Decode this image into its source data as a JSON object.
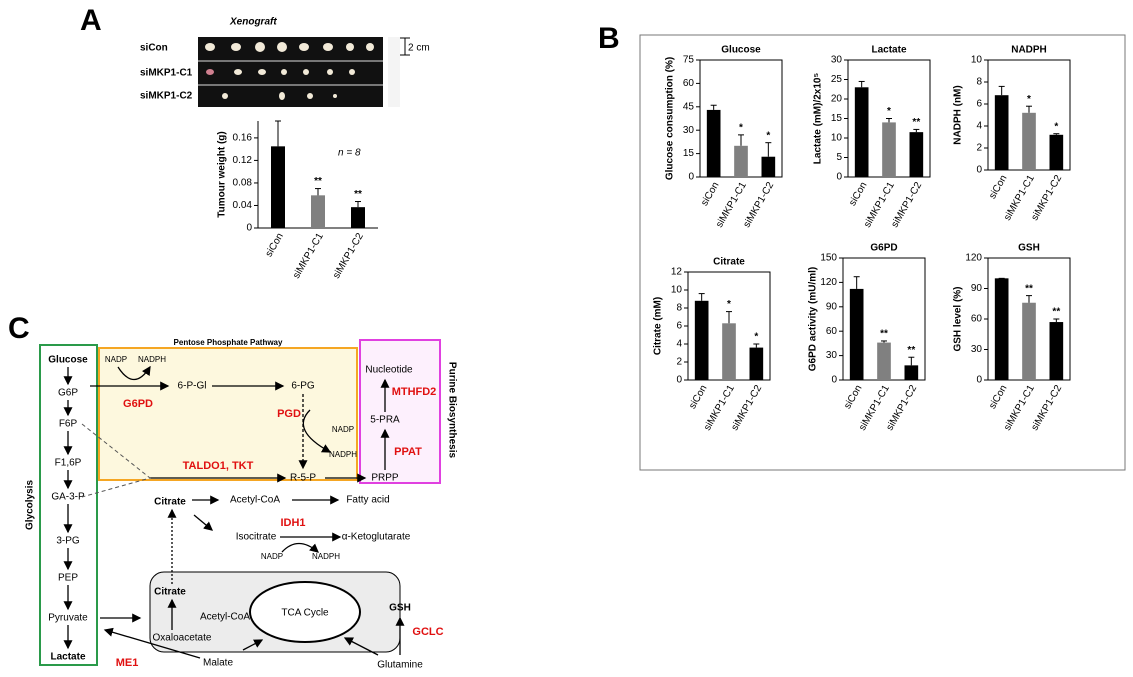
{
  "panels": [
    "A",
    "B",
    "C"
  ],
  "xenograft": {
    "title": "Xenograft",
    "rows": [
      "siCon",
      "siMKP1-C1",
      "siMKP1-C2"
    ],
    "scale": "2 cm"
  },
  "chart_data": [
    {
      "type": "bar",
      "ylabel": "Tumour weight (g)",
      "note": "n = 8",
      "categories": [
        "siCon",
        "siMKP1-C1",
        "siMKP1-C2"
      ],
      "values": [
        0.145,
        0.058,
        0.037
      ],
      "errors": [
        0.045,
        0.012,
        0.01
      ],
      "colors": [
        "#000000",
        "#808080",
        "#000000"
      ],
      "annotations": [
        "**",
        "**"
      ],
      "ylim": [
        0,
        0.19
      ],
      "yticks": [
        0,
        0.04,
        0.08,
        0.12,
        0.16
      ]
    },
    {
      "type": "bar",
      "title": "Glucose",
      "ylabel": "Glucose consumption (%)",
      "categories": [
        "siCon",
        "siMKP1-C1",
        "siMKP1-C2"
      ],
      "values": [
        43,
        20,
        13
      ],
      "errors": [
        3,
        7,
        9
      ],
      "colors": [
        "#000000",
        "#808080",
        "#000000"
      ],
      "annotations": [
        "*",
        "*"
      ],
      "ylim": [
        0,
        75
      ],
      "yticks": [
        0,
        15,
        30,
        45,
        60,
        75
      ]
    },
    {
      "type": "bar",
      "title": "Lactate",
      "ylabel": "Lactate (mM)/2x10⁵",
      "categories": [
        "siCon",
        "siMKP1-C1",
        "siMKP1-C2"
      ],
      "values": [
        23,
        14,
        11.5
      ],
      "errors": [
        1.5,
        1,
        0.7
      ],
      "colors": [
        "#000000",
        "#808080",
        "#000000"
      ],
      "annotations": [
        "*",
        "**"
      ],
      "ylim": [
        0,
        30
      ],
      "yticks": [
        0,
        5,
        10,
        15,
        20,
        25,
        30
      ]
    },
    {
      "type": "bar",
      "title": "NADPH",
      "ylabel": "NADPH (nM)",
      "categories": [
        "siCon",
        "siMKP1-C1",
        "siMKP1-C2"
      ],
      "values": [
        6.8,
        5.2,
        3.2
      ],
      "errors": [
        0.8,
        0.6,
        0.1
      ],
      "colors": [
        "#000000",
        "#808080",
        "#000000"
      ],
      "annotations": [
        "*",
        "*"
      ],
      "ylim": [
        0,
        10
      ],
      "yticks": [
        0,
        2,
        4,
        6,
        8,
        10
      ]
    },
    {
      "type": "bar",
      "title": "Citrate",
      "ylabel": "Citrate (mM)",
      "categories": [
        "siCon",
        "siMKP1-C1",
        "siMKP1-C2"
      ],
      "values": [
        8.8,
        6.3,
        3.6
      ],
      "errors": [
        0.8,
        1.3,
        0.4
      ],
      "colors": [
        "#000000",
        "#808080",
        "#000000"
      ],
      "annotations": [
        "*",
        "*"
      ],
      "ylim": [
        0,
        12
      ],
      "yticks": [
        0,
        2,
        4,
        6,
        8,
        10,
        12
      ]
    },
    {
      "type": "bar",
      "title": "G6PD",
      "ylabel": "G6PD activity (mU/ml)",
      "categories": [
        "siCon",
        "siMKP1-C1",
        "siMKP1-C2"
      ],
      "values": [
        112,
        46,
        18
      ],
      "errors": [
        15,
        2,
        10
      ],
      "colors": [
        "#000000",
        "#808080",
        "#000000"
      ],
      "annotations": [
        "**",
        "**"
      ],
      "ylim": [
        0,
        150
      ],
      "yticks": [
        0,
        30,
        60,
        90,
        120,
        150
      ]
    },
    {
      "type": "bar",
      "title": "GSH",
      "ylabel": "GSH level (%)",
      "categories": [
        "siCon",
        "siMKP1-C1",
        "siMKP1-C2"
      ],
      "values": [
        100,
        76,
        57
      ],
      "errors": [
        0,
        7,
        3
      ],
      "colors": [
        "#000000",
        "#808080",
        "#000000"
      ],
      "annotations": [
        "**",
        "**"
      ],
      "ylim": [
        0,
        120
      ],
      "yticks": [
        0,
        30,
        60,
        90,
        120
      ]
    }
  ],
  "diagram": {
    "pathways": [
      "Pentose Phosphate Pathway",
      "Glycolysis",
      "Purine Biosynthesis"
    ],
    "glycolysis": [
      "Glucose",
      "G6P",
      "F6P",
      "F1,6P",
      "GA-3-P",
      "3-PG",
      "PEP",
      "Pyruvate",
      "Lactate"
    ],
    "ppp": [
      "NADP",
      "NADPH",
      "6-P-Gl",
      "G6PD",
      "6-PG",
      "PGD",
      "NADP",
      "NADPH",
      "R-5-P",
      "TALDO1, TKT"
    ],
    "purine": [
      "PRPP",
      "Nucleotide",
      "MTHFD2",
      "5-PRA",
      "PPAT"
    ],
    "tca": [
      "Citrate",
      "Acetyl-CoA",
      "Fatty acid",
      "IDH1",
      "Isocitrate",
      "α-Ketoglutarate",
      "NADP",
      "NADPH",
      "Citrate",
      "Acetyl-CoA",
      "TCA Cycle",
      "Oxaloacetate",
      "Malate",
      "ME1",
      "Glutamine",
      "GSH",
      "GCLC"
    ]
  }
}
